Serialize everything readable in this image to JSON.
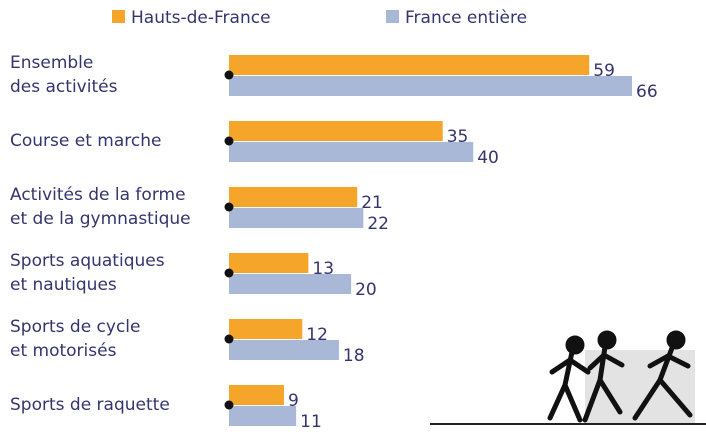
{
  "chart_data": {
    "type": "bar",
    "orientation": "horizontal",
    "categories": [
      [
        "Ensemble",
        "des activités"
      ],
      [
        "Course et marche"
      ],
      [
        "Activités de la forme",
        "et de la gymnastique"
      ],
      [
        "Sports aquatiques",
        "et nautiques"
      ],
      [
        "Sports de cycle",
        "et motorisés"
      ],
      [
        "Sports de raquette"
      ]
    ],
    "series": [
      {
        "name": "Hauts-de-France",
        "color": "#f5a52a",
        "values": [
          59,
          35,
          21,
          13,
          12,
          9
        ]
      },
      {
        "name": "France entière",
        "color": "#a9b8d6",
        "values": [
          66,
          40,
          22,
          20,
          18,
          11
        ]
      }
    ],
    "legend": "top"
  }
}
